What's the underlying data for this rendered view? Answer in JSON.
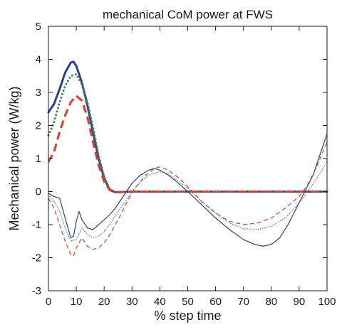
{
  "chart_data": {
    "type": "line",
    "title": "mechanical CoM power at FWS",
    "xlabel": "% step time",
    "ylabel": "Mechanical power (W/kg)",
    "xlim": [
      0,
      100
    ],
    "ylim": [
      -3,
      5
    ],
    "x_ticks": [
      "0",
      "10",
      "20",
      "30",
      "40",
      "50",
      "60",
      "70",
      "80",
      "90",
      "100"
    ],
    "y_ticks": [
      "-3",
      "-2",
      "-1",
      "0",
      "1",
      "2",
      "3",
      "4",
      "5"
    ],
    "grid": false,
    "legend": "none",
    "series": [
      {
        "color": "#2b3f95",
        "style": "solid-thick",
        "points": [
          [
            0,
            2.4
          ],
          [
            2,
            2.65
          ],
          [
            4,
            3.1
          ],
          [
            6,
            3.6
          ],
          [
            8,
            3.9
          ],
          [
            9,
            3.93
          ],
          [
            10,
            3.8
          ],
          [
            12,
            3.3
          ],
          [
            14,
            2.6
          ],
          [
            16,
            1.8
          ],
          [
            18,
            1.0
          ],
          [
            20,
            0.4
          ],
          [
            22,
            0.05
          ],
          [
            24,
            -0.02
          ],
          [
            30,
            0.0
          ],
          [
            40,
            0.0
          ],
          [
            50,
            0.0
          ],
          [
            60,
            0.0
          ],
          [
            70,
            0.0
          ],
          [
            80,
            0.0
          ],
          [
            90,
            0.0
          ],
          [
            100,
            0.0
          ]
        ]
      },
      {
        "color": "#3a8a4e",
        "style": "dotted-thick",
        "points": [
          [
            0,
            1.7
          ],
          [
            2,
            2.1
          ],
          [
            4,
            2.7
          ],
          [
            6,
            3.2
          ],
          [
            8,
            3.5
          ],
          [
            10,
            3.55
          ],
          [
            12,
            3.25
          ],
          [
            14,
            2.7
          ],
          [
            16,
            1.95
          ],
          [
            18,
            1.1
          ],
          [
            20,
            0.45
          ],
          [
            22,
            0.08
          ],
          [
            24,
            -0.02
          ],
          [
            30,
            0.0
          ],
          [
            40,
            0.0
          ],
          [
            50,
            0.0
          ],
          [
            60,
            0.0
          ],
          [
            70,
            0.0
          ],
          [
            80,
            0.0
          ],
          [
            90,
            0.0
          ],
          [
            100,
            0.0
          ]
        ]
      },
      {
        "color": "#e03a2a",
        "style": "dashed-thick",
        "points": [
          [
            0,
            0.9
          ],
          [
            2,
            1.2
          ],
          [
            4,
            1.8
          ],
          [
            6,
            2.3
          ],
          [
            8,
            2.7
          ],
          [
            10,
            2.9
          ],
          [
            12,
            2.75
          ],
          [
            14,
            2.25
          ],
          [
            16,
            1.5
          ],
          [
            18,
            0.8
          ],
          [
            20,
            0.3
          ],
          [
            22,
            0.05
          ],
          [
            24,
            -0.02
          ],
          [
            30,
            0.0
          ],
          [
            40,
            0.0
          ],
          [
            50,
            0.0
          ],
          [
            60,
            0.0
          ],
          [
            70,
            0.0
          ],
          [
            80,
            0.0
          ],
          [
            90,
            0.0
          ],
          [
            100,
            0.0
          ]
        ]
      },
      {
        "color": "#2b3f95",
        "style": "solid-thin",
        "points": [
          [
            0,
            -0.05
          ],
          [
            2,
            -0.15
          ],
          [
            4,
            -0.2
          ],
          [
            6,
            -0.8
          ],
          [
            8,
            -1.4
          ],
          [
            9,
            -1.35
          ],
          [
            10,
            -0.9
          ],
          [
            11,
            -0.6
          ],
          [
            12,
            -0.85
          ],
          [
            14,
            -1.1
          ],
          [
            16,
            -1.15
          ],
          [
            18,
            -1.0
          ],
          [
            20,
            -0.85
          ],
          [
            22,
            -0.7
          ],
          [
            24,
            -0.5
          ],
          [
            26,
            -0.25
          ],
          [
            28,
            0.0
          ],
          [
            30,
            0.25
          ],
          [
            33,
            0.5
          ],
          [
            36,
            0.65
          ],
          [
            38,
            0.7
          ],
          [
            40,
            0.65
          ],
          [
            43,
            0.5
          ],
          [
            46,
            0.3
          ],
          [
            50,
            0.0
          ],
          [
            55,
            -0.4
          ],
          [
            60,
            -0.8
          ],
          [
            65,
            -1.15
          ],
          [
            70,
            -1.45
          ],
          [
            74,
            -1.6
          ],
          [
            77,
            -1.65
          ],
          [
            80,
            -1.6
          ],
          [
            83,
            -1.4
          ],
          [
            86,
            -1.0
          ],
          [
            89,
            -0.5
          ],
          [
            92,
            0.0
          ],
          [
            95,
            0.5
          ],
          [
            97,
            1.0
          ],
          [
            99,
            1.5
          ],
          [
            100,
            1.75
          ]
        ]
      },
      {
        "color": "#3a8a4e",
        "style": "dotted-thin",
        "points": [
          [
            0,
            -0.1
          ],
          [
            2,
            -0.3
          ],
          [
            4,
            -0.6
          ],
          [
            6,
            -1.1
          ],
          [
            8,
            -1.5
          ],
          [
            10,
            -1.45
          ],
          [
            12,
            -1.1
          ],
          [
            14,
            -1.3
          ],
          [
            16,
            -1.4
          ],
          [
            18,
            -1.35
          ],
          [
            20,
            -1.2
          ],
          [
            22,
            -1.0
          ],
          [
            25,
            -0.6
          ],
          [
            28,
            -0.25
          ],
          [
            30,
            0.0
          ],
          [
            33,
            0.3
          ],
          [
            36,
            0.5
          ],
          [
            40,
            0.6
          ],
          [
            43,
            0.55
          ],
          [
            46,
            0.35
          ],
          [
            50,
            0.1
          ],
          [
            55,
            -0.3
          ],
          [
            60,
            -0.65
          ],
          [
            65,
            -0.95
          ],
          [
            70,
            -1.12
          ],
          [
            75,
            -1.15
          ],
          [
            80,
            -1.05
          ],
          [
            85,
            -0.8
          ],
          [
            90,
            -0.35
          ],
          [
            93,
            0.0
          ],
          [
            96,
            0.35
          ],
          [
            100,
            0.9
          ]
        ]
      },
      {
        "color": "#e03a2a",
        "style": "dashed-thin",
        "points": [
          [
            0,
            -0.2
          ],
          [
            2,
            -0.5
          ],
          [
            4,
            -1.0
          ],
          [
            6,
            -1.5
          ],
          [
            8,
            -1.9
          ],
          [
            9,
            -1.95
          ],
          [
            10,
            -1.7
          ],
          [
            12,
            -1.4
          ],
          [
            14,
            -1.65
          ],
          [
            16,
            -1.75
          ],
          [
            18,
            -1.7
          ],
          [
            20,
            -1.55
          ],
          [
            22,
            -1.3
          ],
          [
            25,
            -0.85
          ],
          [
            28,
            -0.35
          ],
          [
            31,
            0.1
          ],
          [
            35,
            0.5
          ],
          [
            38,
            0.7
          ],
          [
            40,
            0.75
          ],
          [
            43,
            0.65
          ],
          [
            47,
            0.4
          ],
          [
            50,
            0.15
          ],
          [
            55,
            -0.3
          ],
          [
            60,
            -0.65
          ],
          [
            65,
            -0.9
          ],
          [
            70,
            -1.0
          ],
          [
            75,
            -0.95
          ],
          [
            80,
            -0.8
          ],
          [
            85,
            -0.5
          ],
          [
            90,
            -0.15
          ],
          [
            93,
            0.2
          ],
          [
            96,
            0.7
          ],
          [
            98,
            1.1
          ],
          [
            100,
            1.5
          ]
        ]
      }
    ]
  }
}
